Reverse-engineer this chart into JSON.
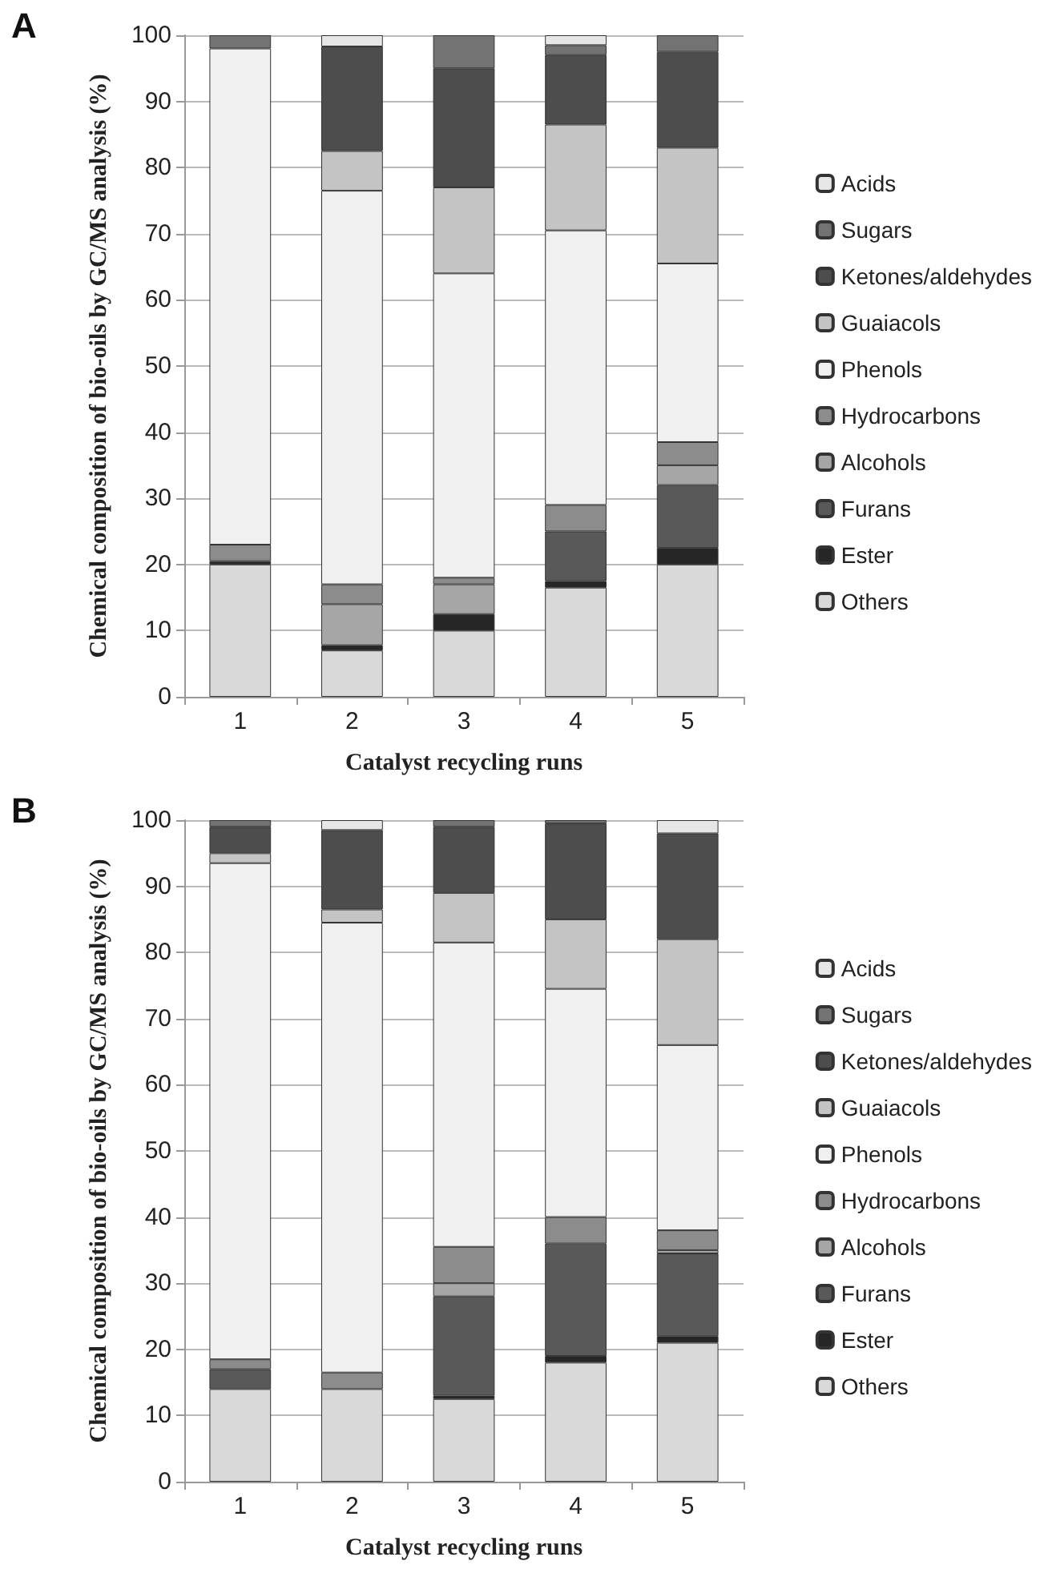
{
  "chart_data": [
    {
      "type": "bar",
      "title": "A",
      "xlabel": "Catalyst recycling runs",
      "ylabel": "Chemical composition of bio-oils by GC/MS analysis (%)",
      "categories": [
        "1",
        "2",
        "3",
        "4",
        "5"
      ],
      "stacked": true,
      "ylim": [
        0,
        100
      ],
      "yticks": [
        0,
        10,
        20,
        30,
        40,
        50,
        60,
        70,
        80,
        90,
        100
      ],
      "grid": "y",
      "legend": "right",
      "series": [
        {
          "name": "Others",
          "color": "#d9d9d9",
          "values": [
            20,
            7,
            10,
            16.5,
            20
          ]
        },
        {
          "name": "Ester",
          "color": "#262626",
          "values": [
            0.5,
            0.8,
            2.5,
            1,
            2.5
          ]
        },
        {
          "name": "Furans",
          "color": "#595959",
          "values": [
            0,
            0,
            0,
            7.5,
            9.5
          ]
        },
        {
          "name": "Alcohols",
          "color": "#a6a6a6",
          "values": [
            0,
            6.2,
            4.5,
            0,
            3
          ]
        },
        {
          "name": "Hydrocarbons",
          "color": "#8c8c8c",
          "values": [
            2.5,
            3,
            1,
            4,
            3.5
          ]
        },
        {
          "name": "Phenols",
          "color": "#f0f0f0",
          "values": [
            75,
            59.5,
            46,
            41.5,
            27
          ]
        },
        {
          "name": "Guaiacols",
          "color": "#c4c4c4",
          "values": [
            0,
            6,
            13,
            16,
            17.5
          ]
        },
        {
          "name": "Ketones/aldehydes",
          "color": "#4d4d4d",
          "values": [
            0,
            15.8,
            18,
            10.5,
            14.5
          ]
        },
        {
          "name": "Sugars",
          "color": "#737373",
          "values": [
            2,
            0,
            5,
            1.5,
            2.5
          ]
        },
        {
          "name": "Acids",
          "color": "#e6e6e6",
          "values": [
            0,
            1.7,
            0,
            1.5,
            0
          ]
        }
      ]
    },
    {
      "type": "bar",
      "title": "B",
      "xlabel": "Catalyst recycling runs",
      "ylabel": "Chemical composition of bio-oils by GC/MS analysis (%)",
      "categories": [
        "1",
        "2",
        "3",
        "4",
        "5"
      ],
      "stacked": true,
      "ylim": [
        0,
        100
      ],
      "yticks": [
        0,
        10,
        20,
        30,
        40,
        50,
        60,
        70,
        80,
        90,
        100
      ],
      "grid": "y",
      "legend": "right",
      "series": [
        {
          "name": "Others",
          "color": "#d9d9d9",
          "values": [
            14,
            14,
            12.5,
            18,
            21
          ]
        },
        {
          "name": "Ester",
          "color": "#262626",
          "values": [
            0,
            0,
            0.5,
            1,
            1
          ]
        },
        {
          "name": "Furans",
          "color": "#595959",
          "values": [
            3,
            0,
            15,
            17,
            12.5
          ]
        },
        {
          "name": "Alcohols",
          "color": "#a6a6a6",
          "values": [
            0,
            0,
            2,
            0,
            0.5
          ]
        },
        {
          "name": "Hydrocarbons",
          "color": "#8c8c8c",
          "values": [
            1.5,
            2.5,
            5.5,
            4,
            3
          ]
        },
        {
          "name": "Phenols",
          "color": "#f0f0f0",
          "values": [
            75,
            68,
            46,
            34.5,
            28
          ]
        },
        {
          "name": "Guaiacols",
          "color": "#c4c4c4",
          "values": [
            1.5,
            2,
            7.5,
            10.5,
            16
          ]
        },
        {
          "name": "Ketones/aldehydes",
          "color": "#4d4d4d",
          "values": [
            4,
            12,
            10,
            14.5,
            16
          ]
        },
        {
          "name": "Sugars",
          "color": "#737373",
          "values": [
            1,
            0,
            1,
            0.5,
            0
          ]
        },
        {
          "name": "Acids",
          "color": "#e6e6e6",
          "values": [
            0,
            1.5,
            0,
            0,
            2
          ]
        }
      ]
    }
  ]
}
